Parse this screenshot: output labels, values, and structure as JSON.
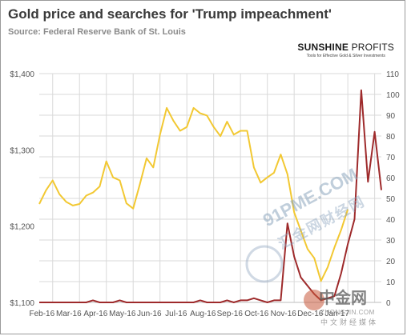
{
  "chart_data": {
    "type": "line",
    "title": "Gold price and searches for 'Trump impeachment'",
    "subtitle": "Source: Federal Reserve Bank of St. Louis",
    "brand": {
      "name_bold": "SUNSHINE",
      "name_light": "PROFITS",
      "tagline": "Tools for Effective Gold & Silver Investments"
    },
    "x_labels": [
      "Feb-16",
      "Mar-16",
      "Apr-16",
      "May-16",
      "Jun-16",
      "Jul-16",
      "Aug-16",
      "Sep-16",
      "Oct-16",
      "Nov-16",
      "Dec-16",
      "Jan-17"
    ],
    "y_left": {
      "min": 1100,
      "max": 1400,
      "ticks": [
        1100,
        1200,
        1300,
        1400
      ],
      "tick_labels": [
        "$1,100",
        "$1,200",
        "$1,300",
        "$1,400"
      ]
    },
    "y_right": {
      "min": 0,
      "max": 110,
      "ticks": [
        0,
        10,
        20,
        30,
        40,
        50,
        60,
        70,
        80,
        90,
        100,
        110
      ],
      "tick_labels": [
        "0",
        "10",
        "20",
        "30",
        "40",
        "50",
        "60",
        "70",
        "80",
        "90",
        "100",
        "110"
      ]
    },
    "grid": true,
    "legend": "none",
    "colors": {
      "gold": "#f2c832",
      "searches": "#9e2a2b",
      "grid": "#d9d9d9"
    },
    "series": [
      {
        "axis": "left",
        "x": [
          0,
          0.25,
          0.5,
          0.75,
          1,
          1.25,
          1.5,
          1.75,
          2,
          2.25,
          2.5,
          2.75,
          3,
          3.25,
          3.5,
          3.75,
          4,
          4.25,
          4.5,
          4.75,
          5,
          5.25,
          5.5,
          5.75,
          6,
          6.25,
          6.5,
          6.75,
          7,
          7.25,
          7.5,
          7.75,
          8,
          8.25,
          8.5,
          8.75,
          9,
          9.25,
          9.5,
          9.75,
          10,
          10.25,
          10.5,
          10.75,
          11,
          11.25,
          11.5
        ],
        "values": [
          1229,
          1247,
          1260,
          1242,
          1232,
          1227,
          1229,
          1240,
          1244,
          1252,
          1285,
          1264,
          1260,
          1230,
          1223,
          1255,
          1289,
          1277,
          1320,
          1355,
          1338,
          1325,
          1330,
          1355,
          1348,
          1345,
          1330,
          1318,
          1337,
          1320,
          1325,
          1325,
          1277,
          1257,
          1264,
          1270,
          1294,
          1268,
          1218,
          1194,
          1170,
          1158,
          1128,
          1146,
          1172,
          1195,
          1222
        ]
      },
      {
        "axis": "right",
        "x": [
          0,
          0.25,
          0.5,
          0.75,
          1,
          1.25,
          1.5,
          1.75,
          2,
          2.25,
          2.5,
          2.75,
          3,
          3.25,
          3.5,
          3.75,
          4,
          4.25,
          4.5,
          4.75,
          5,
          5.25,
          5.5,
          5.75,
          6,
          6.25,
          6.5,
          6.75,
          7,
          7.25,
          7.5,
          7.75,
          8,
          8.25,
          8.5,
          8.75,
          9,
          9.25,
          9.5,
          9.75,
          10,
          10.25,
          10.5,
          10.75,
          11,
          11.25,
          11.5,
          11.75,
          12,
          12.25,
          12.5,
          12.75
        ],
        "values": [
          0,
          0,
          0,
          0,
          0,
          0,
          0,
          0,
          1,
          0,
          0,
          0,
          1,
          0,
          0,
          0,
          0,
          0,
          0,
          0,
          0,
          0,
          0,
          0,
          1,
          0,
          0,
          0,
          1,
          0,
          1,
          1,
          2,
          1,
          0,
          1,
          1,
          38,
          22,
          12,
          8,
          4,
          1,
          2,
          3,
          14,
          28,
          40,
          102,
          58,
          82,
          54
        ]
      }
    ]
  },
  "watermark": {
    "text": "91PME.COM",
    "sub": "汇金网财经网",
    "logo": "中金网",
    "logo_url": "ZHONGJIN.COM",
    "logo_sub": "中文财经媒体"
  }
}
